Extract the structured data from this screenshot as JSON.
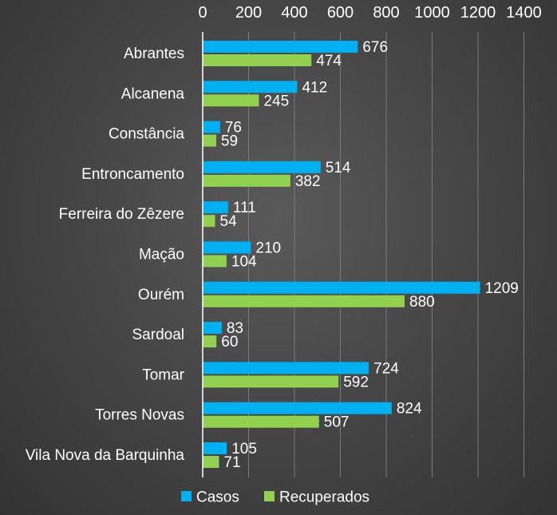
{
  "chart_data": {
    "type": "bar",
    "orientation": "horizontal",
    "title": "",
    "xlabel": "",
    "ylabel": "",
    "categories": [
      "Abrantes",
      "Alcanena",
      "Constância",
      "Entroncamento",
      "Ferreira do Zêzere",
      "Mação",
      "Ourém",
      "Sardoal",
      "Tomar",
      "Torres Novas",
      "Vila Nova da Barquinha"
    ],
    "series": [
      {
        "name": "Casos",
        "color": "#00b0f0",
        "values": [
          676,
          412,
          76,
          514,
          111,
          210,
          1209,
          83,
          724,
          824,
          105
        ]
      },
      {
        "name": "Recuperados",
        "color": "#92d050",
        "values": [
          474,
          245,
          59,
          382,
          54,
          104,
          880,
          60,
          592,
          507,
          71
        ]
      }
    ],
    "xlim": [
      0,
      1400
    ],
    "xticks": [
      "0",
      "200",
      "400",
      "600",
      "800",
      "1000",
      "1200",
      "1400"
    ],
    "axis_position": "top",
    "grid": true,
    "legend": "bottom",
    "data_labels": true
  }
}
